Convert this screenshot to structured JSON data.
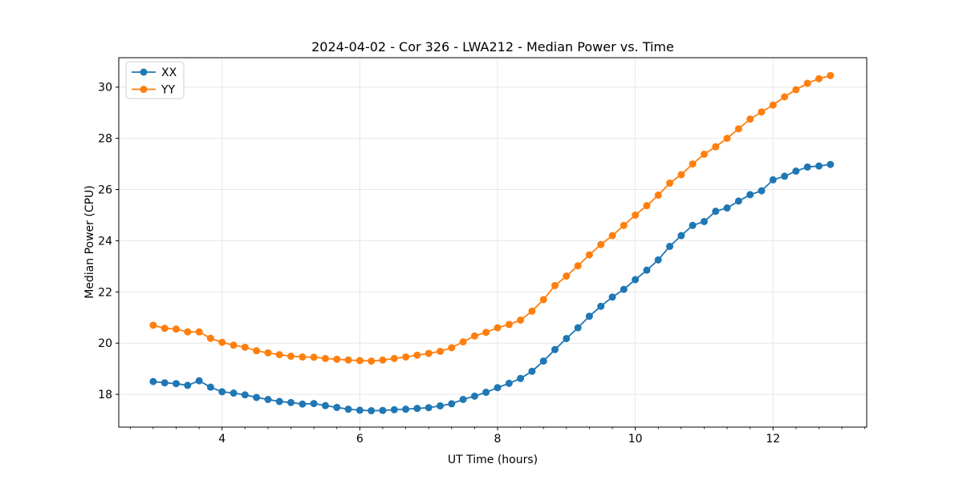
{
  "figure": {
    "background": "#ffffff"
  },
  "chart_data": {
    "type": "line",
    "title": "2024-04-02 - Cor 326 - LWA212 - Median Power vs. Time",
    "xlabel": "UT Time (hours)",
    "ylabel": "Median Power (CPU)",
    "xlim": [
      2.5,
      13.36
    ],
    "ylim": [
      16.72,
      31.15
    ],
    "xticks": [
      4,
      6,
      8,
      10,
      12
    ],
    "yticks": [
      18,
      20,
      22,
      24,
      26,
      28,
      30
    ],
    "x_minor_tick_start": 2.6667,
    "x_minor_tick_step": 0.33333,
    "grid": true,
    "grid_color": "#e6e6e6",
    "legend_position": "upper-left",
    "marker": "o",
    "x": [
      3.0,
      3.167,
      3.333,
      3.5,
      3.667,
      3.833,
      4.0,
      4.167,
      4.333,
      4.5,
      4.667,
      4.833,
      5.0,
      5.167,
      5.333,
      5.5,
      5.667,
      5.833,
      6.0,
      6.167,
      6.333,
      6.5,
      6.667,
      6.833,
      7.0,
      7.167,
      7.333,
      7.5,
      7.667,
      7.833,
      8.0,
      8.167,
      8.333,
      8.5,
      8.667,
      8.833,
      9.0,
      9.167,
      9.333,
      9.5,
      9.667,
      9.833,
      10.0,
      10.167,
      10.333,
      10.5,
      10.667,
      10.833,
      11.0,
      11.167,
      11.333,
      11.5,
      11.667,
      11.833,
      12.0,
      12.167,
      12.333,
      12.5,
      12.667,
      12.833
    ],
    "series": [
      {
        "name": "XX",
        "color": "#1f77b4",
        "values": [
          18.5,
          18.45,
          18.42,
          18.35,
          18.53,
          18.28,
          18.1,
          18.05,
          17.98,
          17.88,
          17.8,
          17.72,
          17.68,
          17.62,
          17.64,
          17.56,
          17.49,
          17.42,
          17.38,
          17.36,
          17.37,
          17.4,
          17.42,
          17.45,
          17.48,
          17.55,
          17.63,
          17.8,
          17.93,
          18.08,
          18.26,
          18.43,
          18.62,
          18.9,
          19.3,
          19.75,
          20.18,
          20.6,
          21.05,
          21.44,
          21.8,
          22.1,
          22.48,
          22.85,
          23.25,
          23.78,
          24.2,
          24.6,
          24.75,
          25.15,
          25.28,
          25.55,
          25.8,
          25.95,
          26.38,
          26.52,
          26.72,
          26.88,
          26.92,
          26.98
        ]
      },
      {
        "name": "YY",
        "color": "#ff7f0e",
        "values": [
          20.7,
          20.58,
          20.55,
          20.44,
          20.44,
          20.19,
          20.03,
          19.92,
          19.84,
          19.7,
          19.62,
          19.55,
          19.49,
          19.46,
          19.45,
          19.4,
          19.37,
          19.34,
          19.32,
          19.3,
          19.34,
          19.4,
          19.46,
          19.53,
          19.6,
          19.68,
          19.82,
          20.05,
          20.28,
          20.42,
          20.6,
          20.73,
          20.9,
          21.25,
          21.7,
          22.25,
          22.62,
          23.02,
          23.45,
          23.85,
          24.2,
          24.6,
          25.0,
          25.37,
          25.78,
          26.25,
          26.58,
          27.0,
          27.38,
          27.67,
          28.0,
          28.37,
          28.75,
          29.03,
          29.3,
          29.62,
          29.9,
          30.15,
          30.33,
          30.45
        ]
      }
    ]
  }
}
